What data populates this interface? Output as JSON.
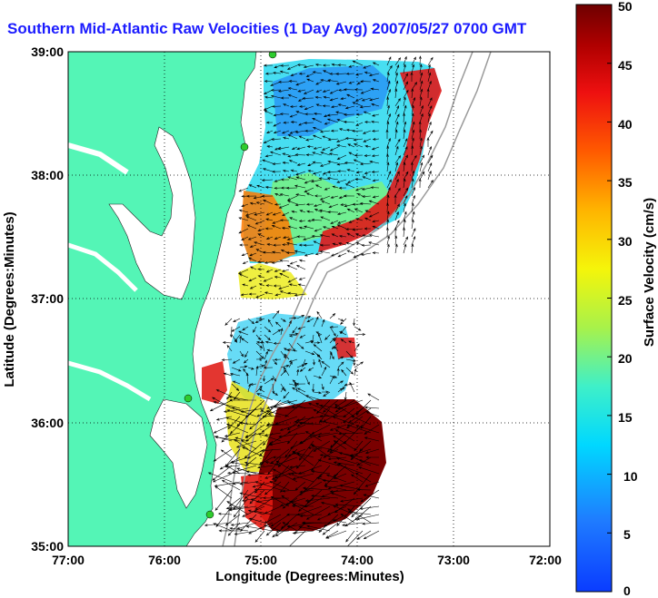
{
  "title": "Southern Mid-Atlantic Raw Velocities (1 Day Avg) 2007/05/27 0700 GMT",
  "xlabel": "Longitude (Degrees:Minutes)",
  "ylabel": "Latitude (Degrees:Minutes)",
  "colorbar": {
    "label": "Surface Velocity (cm/s)",
    "ticks": [
      "0",
      "5",
      "10",
      "15",
      "20",
      "25",
      "30",
      "35",
      "40",
      "45",
      "50"
    ],
    "range": [
      0,
      50
    ]
  },
  "axes": {
    "xticks": [
      "77:00",
      "76:00",
      "75:00",
      "74:00",
      "73:00",
      "72:00"
    ],
    "yticks": [
      "35:00",
      "36:00",
      "37:00",
      "38:00",
      "39:00"
    ],
    "xlim": [
      -77,
      -72
    ],
    "ylim": [
      35,
      39
    ]
  },
  "colors": {
    "land": "#54f5b6",
    "title": "#1b1bff",
    "station": "#2ecc2e",
    "grid": "#000000",
    "bathymetry": "#9a9a9a"
  }
}
